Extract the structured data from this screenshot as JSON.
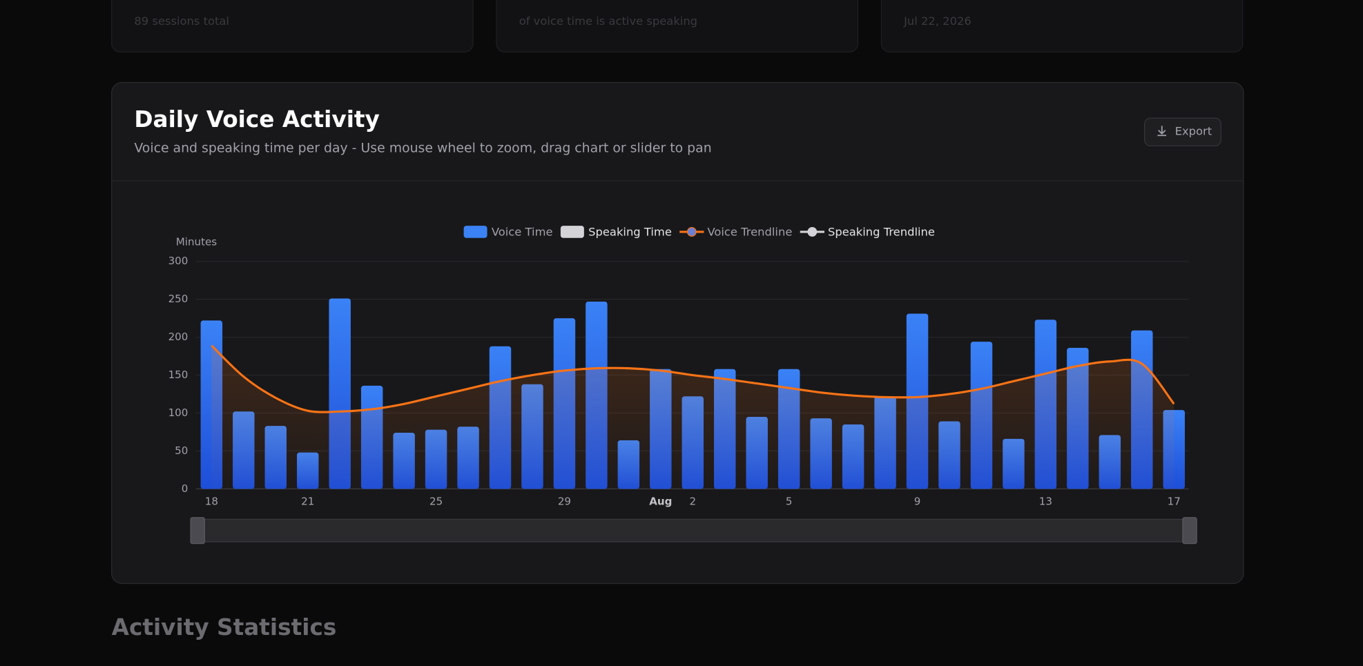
{
  "cards": [
    {
      "subtitle": "89 sessions total"
    },
    {
      "subtitle": "of voice time is active speaking"
    },
    {
      "subtitle": "Jul 22, 2026"
    }
  ],
  "panel": {
    "title": "Daily Voice Activity",
    "subtitle": "Voice and speaking time per day - Use mouse wheel to zoom, drag chart or slider to pan",
    "export": "Export"
  },
  "chart_data": {
    "type": "bar",
    "ylabel": "Minutes",
    "categories": [
      "18",
      null,
      null,
      "21",
      null,
      null,
      null,
      "25",
      null,
      null,
      null,
      "29",
      null,
      null,
      "Aug",
      "2",
      null,
      null,
      "5",
      null,
      null,
      null,
      "9",
      null,
      null,
      null,
      "13",
      null,
      null,
      null,
      "17"
    ],
    "series": [
      {
        "name": "Voice Time",
        "color": "#3b82f6",
        "kind": "bar",
        "values": [
          222,
          102,
          83,
          48,
          251,
          136,
          74,
          78,
          82,
          188,
          138,
          225,
          247,
          64,
          158,
          122,
          158,
          95,
          158,
          93,
          85,
          122,
          231,
          89,
          194,
          66,
          223,
          186,
          71,
          209,
          104
        ]
      },
      {
        "name": "Speaking Time",
        "color": "#d4d4d8",
        "kind": "bar",
        "hidden": true
      },
      {
        "name": "Voice Trendline",
        "color": "#f97316",
        "kind": "line",
        "values": [
          189,
          148,
          120,
          103,
          102,
          105,
          112,
          122,
          132,
          142,
          150,
          156,
          159,
          159,
          156,
          150,
          145,
          139,
          133,
          127,
          123,
          121,
          121,
          125,
          132,
          142,
          152,
          162,
          168,
          165,
          112
        ]
      },
      {
        "name": "Speaking Trendline",
        "color": "#d4d4d8",
        "kind": "line",
        "hidden": true
      }
    ],
    "ylim": [
      0,
      300
    ],
    "yticks": [
      0,
      50,
      100,
      150,
      200,
      250,
      300
    ],
    "grid": true
  },
  "section_title": "Activity Statistics"
}
